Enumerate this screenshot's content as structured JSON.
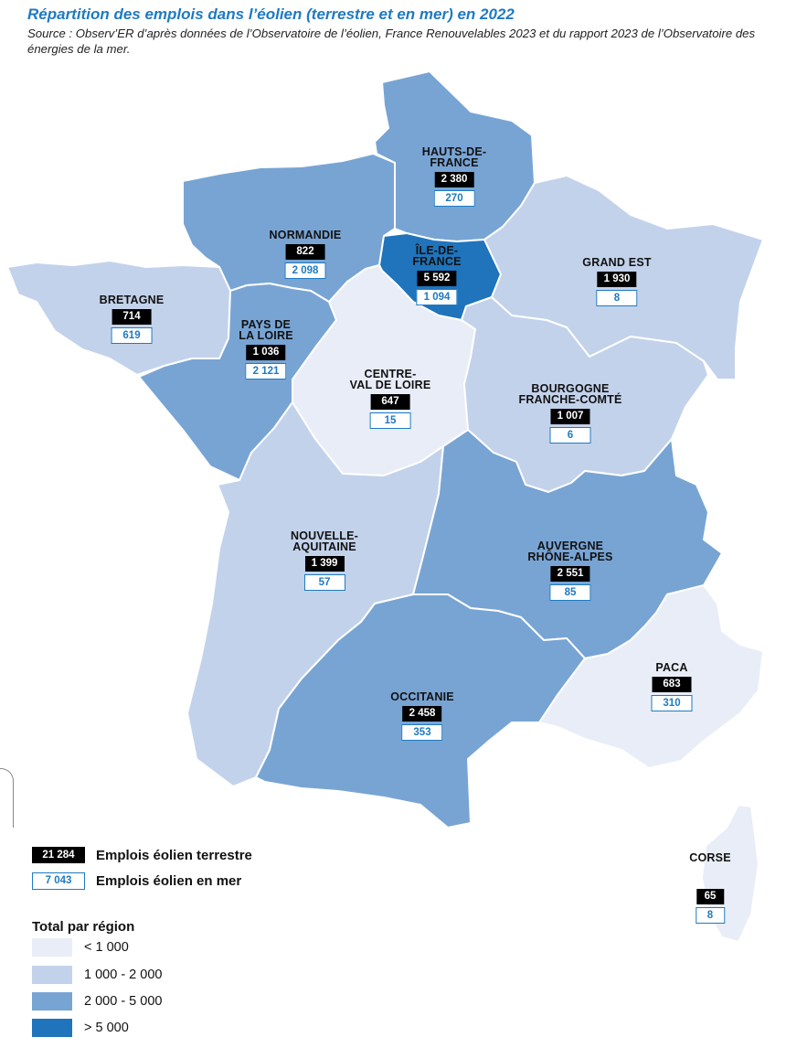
{
  "title": "Répartition des emplois dans l’éolien (terrestre et en mer) en 2022",
  "source": "Source : Observ’ER d’après données de l’Observatoire de l’éolien, France Renouvelables 2023 et du rapport 2023 de l’Observatoire des énergies de la mer.",
  "colors": {
    "lt1000": "#e8edf7",
    "c1000_2000": "#c3d2eb",
    "c2000_5000": "#78a4d4",
    "gt5000": "#1f74bb",
    "accent": "#1f7ac1"
  },
  "regions": [
    {
      "id": "hauts-de-france",
      "name": "HAUTS-DE-\nFRANCE",
      "land": "2 380",
      "sea": "270",
      "class": "c2000_5000"
    },
    {
      "id": "normandie",
      "name": "NORMANDIE",
      "land": "822",
      "sea": "2 098",
      "class": "c2000_5000"
    },
    {
      "id": "ile-de-france",
      "name": "ÎLE-DE-\nFRANCE",
      "land": "5 592",
      "sea": "1 094",
      "class": "gt5000"
    },
    {
      "id": "grand-est",
      "name": "GRAND EST",
      "land": "1 930",
      "sea": "8",
      "class": "c1000_2000"
    },
    {
      "id": "bretagne",
      "name": "BRETAGNE",
      "land": "714",
      "sea": "619",
      "class": "c1000_2000"
    },
    {
      "id": "pays-de-la-loire",
      "name": "PAYS DE\nLA LOIRE",
      "land": "1 036",
      "sea": "2 121",
      "class": "c2000_5000"
    },
    {
      "id": "centre-val-de-loire",
      "name": "CENTRE-\nVAL DE LOIRE",
      "land": "647",
      "sea": "15",
      "class": "lt1000"
    },
    {
      "id": "bourgogne-franche-comte",
      "name": "BOURGOGNE\nFRANCHE-COMTÉ",
      "land": "1 007",
      "sea": "6",
      "class": "c1000_2000"
    },
    {
      "id": "nouvelle-aquitaine",
      "name": "NOUVELLE-\nAQUITAINE",
      "land": "1 399",
      "sea": "57",
      "class": "c1000_2000"
    },
    {
      "id": "auvergne-rhone-alpes",
      "name": "AUVERGNE\nRHÔNE-ALPES",
      "land": "2 551",
      "sea": "85",
      "class": "c2000_5000"
    },
    {
      "id": "occitanie",
      "name": "OCCITANIE",
      "land": "2 458",
      "sea": "353",
      "class": "c2000_5000"
    },
    {
      "id": "paca",
      "name": "PACA",
      "land": "683",
      "sea": "310",
      "class": "lt1000"
    },
    {
      "id": "corse",
      "name": "CORSE",
      "land": "65",
      "sea": "8",
      "class": "lt1000"
    }
  ],
  "legend": {
    "land_value": "21 284",
    "land_label": "Emplois éolien terrestre",
    "sea_value": "7 043",
    "sea_label": "Emplois éolien en mer",
    "scale_title": "Total par région",
    "scale": [
      {
        "label": "< 1 000",
        "class": "lt1000"
      },
      {
        "label": "1 000 - 2 000",
        "class": "c1000_2000"
      },
      {
        "label": "2 000 - 5 000",
        "class": "c2000_5000"
      },
      {
        "label": "> 5 000",
        "class": "gt5000"
      }
    ]
  }
}
